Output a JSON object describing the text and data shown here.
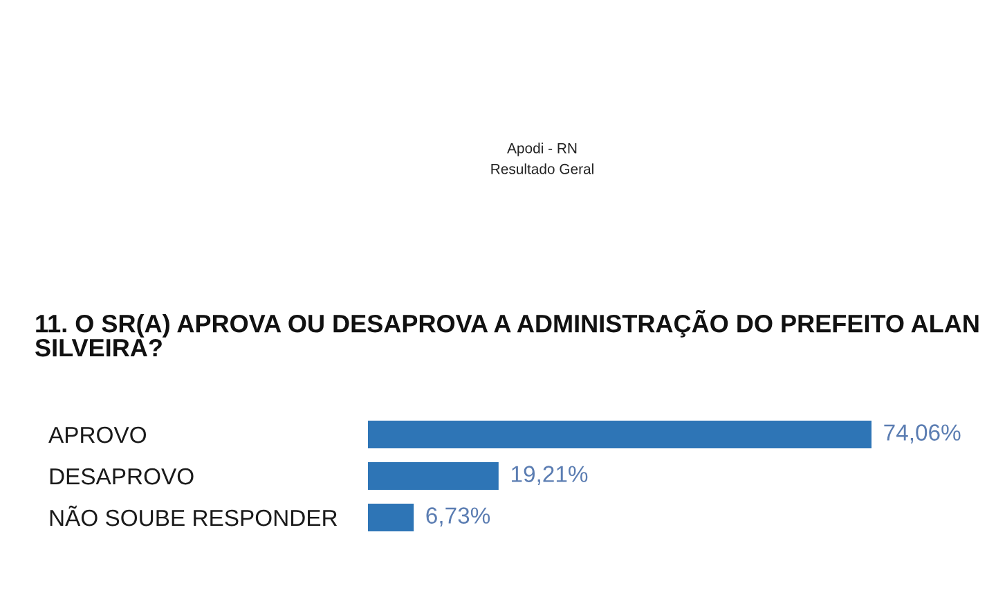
{
  "chart_data": {
    "type": "bar",
    "orientation": "horizontal",
    "title": "11. O SR(A) APROVA OU DESAPROVA A ADMINISTRAÇÃO DO PREFEITO ALAN SILVEIRA?",
    "annotations": [
      "Apodi - RN",
      "Resultado Geral"
    ],
    "categories": [
      "APROVO",
      "DESAPROVO",
      "NÃO SOUBE RESPONDER"
    ],
    "values": [
      74.06,
      19.21,
      6.73
    ],
    "value_labels": [
      "74,06%",
      "19,21%",
      "6,73%"
    ],
    "color": "#2e75b6",
    "tick_labels": "y",
    "grid": false,
    "legend": false
  }
}
